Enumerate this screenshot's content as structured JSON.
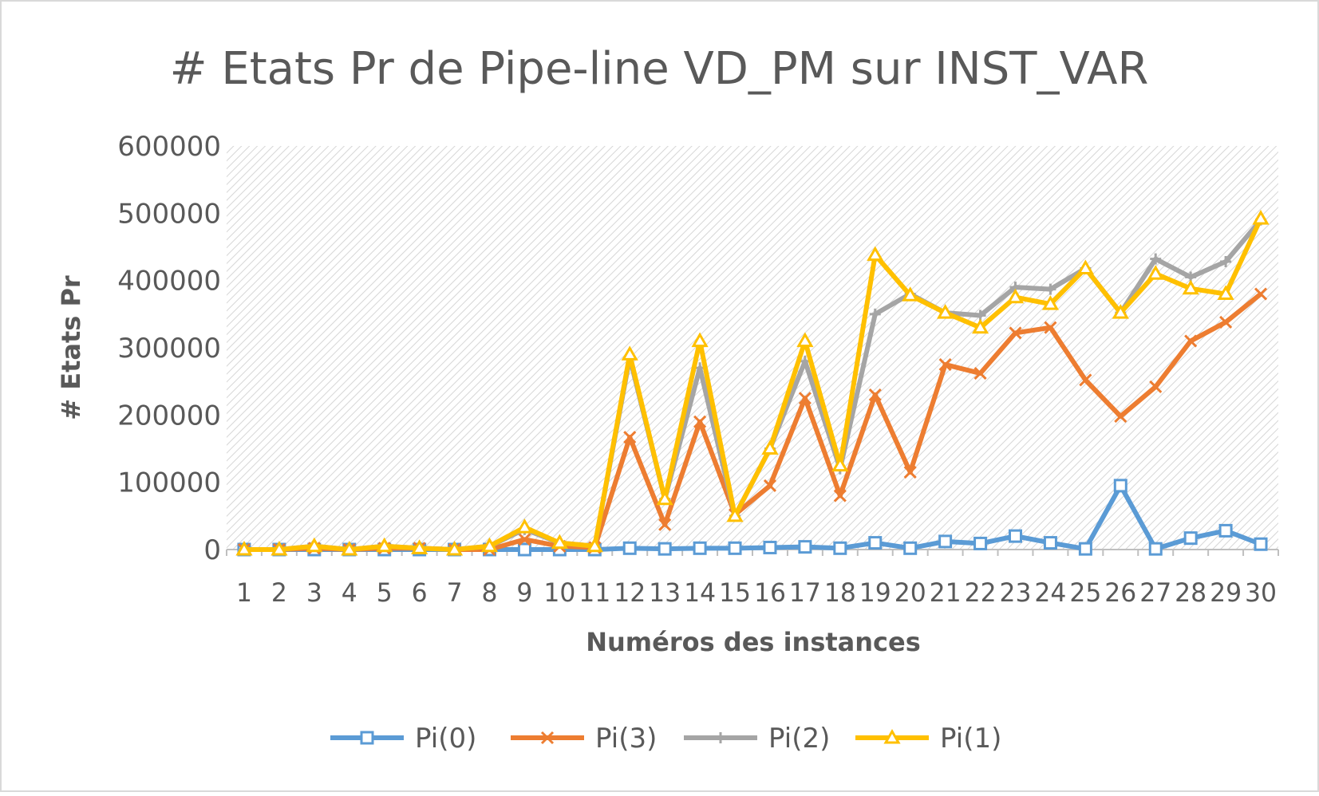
{
  "chart_data": {
    "type": "line",
    "title": "# Etats Pr de Pipe-line VD_PM sur INST_VAR",
    "xlabel": "Numéros des instances",
    "ylabel": "# Etats Pr",
    "categories": [
      "1",
      "2",
      "3",
      "4",
      "5",
      "6",
      "7",
      "8",
      "9",
      "10",
      "11",
      "12",
      "13",
      "14",
      "15",
      "16",
      "17",
      "18",
      "19",
      "20",
      "21",
      "22",
      "23",
      "24",
      "25",
      "26",
      "27",
      "28",
      "29",
      "30"
    ],
    "ylim": [
      0,
      600000
    ],
    "yticks": [
      "0",
      "100000",
      "200000",
      "300000",
      "400000",
      "500000",
      "600000"
    ],
    "ytick_values": [
      0,
      100000,
      200000,
      300000,
      400000,
      500000,
      600000
    ],
    "grid": false,
    "legend_position": "bottom",
    "plot_background": "diagonal hatch",
    "series": [
      {
        "name": "Pi(0)",
        "color": "#5b9bd5",
        "marker": "square",
        "values": [
          0,
          0,
          0,
          0,
          0,
          0,
          0,
          0,
          0,
          0,
          0,
          2000,
          1000,
          2000,
          2000,
          3000,
          4000,
          2000,
          10000,
          2000,
          12000,
          9000,
          20000,
          10000,
          1000,
          95000,
          1000,
          17000,
          28000,
          8000
        ]
      },
      {
        "name": "Pi(3)",
        "color": "#ed7d31",
        "marker": "x",
        "values": [
          0,
          0,
          2000,
          0,
          2000,
          2000,
          0,
          0,
          15000,
          5000,
          3000,
          167000,
          37000,
          190000,
          52000,
          95000,
          225000,
          80000,
          230000,
          115000,
          275000,
          262000,
          322000,
          330000,
          252000,
          198000,
          242000,
          310000,
          338000,
          380000
        ]
      },
      {
        "name": "Pi(2)",
        "color": "#a5a5a5",
        "marker": "plus",
        "values": [
          0,
          0,
          5000,
          0,
          5000,
          2000,
          0,
          5000,
          30000,
          10000,
          5000,
          285000,
          75000,
          270000,
          50000,
          150000,
          280000,
          120000,
          350000,
          380000,
          352000,
          348000,
          390000,
          387000,
          418000,
          352000,
          432000,
          405000,
          428000,
          490000
        ]
      },
      {
        "name": "Pi(1)",
        "color": "#ffc000",
        "marker": "triangle",
        "values": [
          0,
          0,
          5000,
          0,
          5000,
          2000,
          0,
          5000,
          33000,
          10000,
          5000,
          290000,
          75000,
          310000,
          50000,
          150000,
          310000,
          125000,
          438000,
          378000,
          352000,
          330000,
          375000,
          365000,
          418000,
          352000,
          410000,
          388000,
          380000,
          492000
        ]
      }
    ]
  }
}
